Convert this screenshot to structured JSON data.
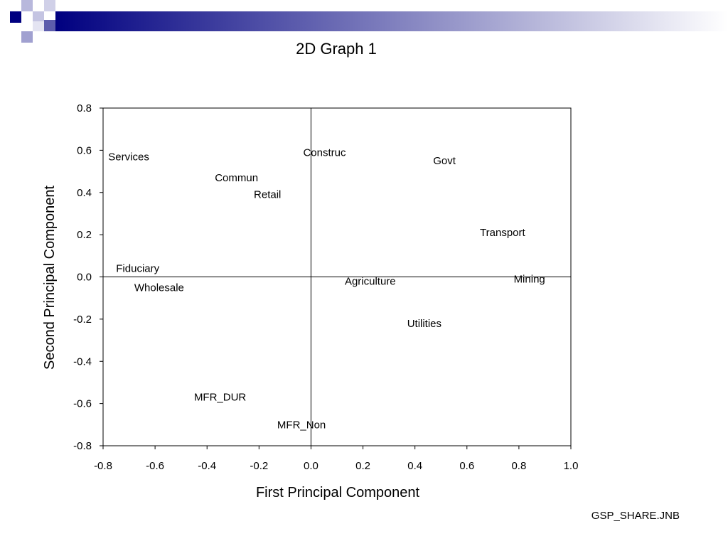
{
  "slide": {
    "footer": "GSP_SHARE.JNB",
    "band_color": "#000080"
  },
  "chart_data": {
    "type": "scatter",
    "title": "2D Graph 1",
    "xlabel": "First Principal Component",
    "ylabel": "Second Principal Component",
    "xlim": [
      -0.8,
      1.0
    ],
    "ylim": [
      -0.8,
      0.8
    ],
    "xticks": [
      -0.8,
      -0.6,
      -0.4,
      -0.2,
      0.0,
      0.2,
      0.4,
      0.6,
      0.8,
      1.0
    ],
    "yticks": [
      -0.8,
      -0.6,
      -0.4,
      -0.2,
      0.0,
      0.2,
      0.4,
      0.6,
      0.8
    ],
    "xtick_labels": [
      "-0.8",
      "-0.6",
      "-0.4",
      "-0.2",
      "0.0",
      "0.2",
      "0.4",
      "0.6",
      "0.8",
      "1.0"
    ],
    "ytick_labels": [
      "-0.8",
      "-0.6",
      "-0.4",
      "-0.2",
      "0.0",
      "0.2",
      "0.4",
      "0.6",
      "0.8"
    ],
    "zero_lines": true,
    "grid": false,
    "points": [
      {
        "label": "Services",
        "x": -0.78,
        "y": 0.57
      },
      {
        "label": "Construc",
        "x": -0.03,
        "y": 0.59
      },
      {
        "label": "Govt",
        "x": 0.47,
        "y": 0.55
      },
      {
        "label": "Commun",
        "x": -0.37,
        "y": 0.47
      },
      {
        "label": "Retail",
        "x": -0.22,
        "y": 0.39
      },
      {
        "label": "Transport",
        "x": 0.65,
        "y": 0.21
      },
      {
        "label": "Fiduciary",
        "x": -0.75,
        "y": 0.04
      },
      {
        "label": "Mining",
        "x": 0.78,
        "y": -0.01
      },
      {
        "label": "Agriculture",
        "x": 0.13,
        "y": -0.02
      },
      {
        "label": "Wholesale",
        "x": -0.68,
        "y": -0.05
      },
      {
        "label": "Utilities",
        "x": 0.37,
        "y": -0.22
      },
      {
        "label": "MFR_DUR",
        "x": -0.45,
        "y": -0.57
      },
      {
        "label": "MFR_Non",
        "x": -0.13,
        "y": -0.7
      }
    ]
  }
}
